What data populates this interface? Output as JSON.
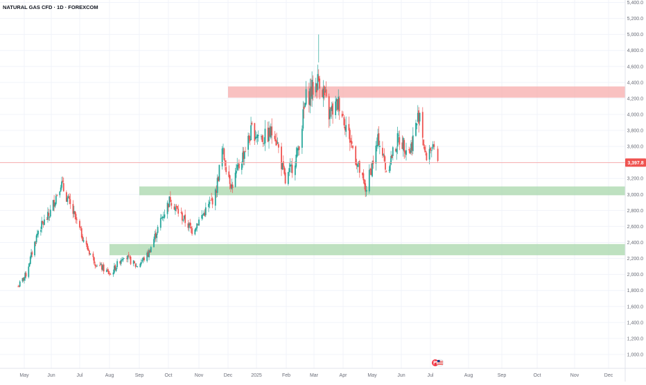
{
  "chart_title": "NATURAL GAS CFD · 1D · FOREXCOM",
  "colors": {
    "up": "#26a69a",
    "down": "#ef5350",
    "grid": "#f0f3fa",
    "resistance_zone": "#f7a9a9",
    "support_zone": "#a5d6a7",
    "last_price_line": "#f7a5a5",
    "last_price_badge": "#ef5350"
  },
  "icons": [
    "event-flag-icon",
    "us-flag-icon"
  ],
  "chart_data": {
    "type": "candlestick",
    "symbol": "NATURAL GAS CFD",
    "interval": "1D",
    "source": "FOREXCOM",
    "ylim": [
      900,
      5450
    ],
    "y_ticks": [
      "1,000.0",
      "1,200.0",
      "1,400.0",
      "1,600.0",
      "1,800.0",
      "2,000.0",
      "2,200.0",
      "2,400.0",
      "2,600.0",
      "2,800.0",
      "3,000.0",
      "3,200.0",
      "3,400.0",
      "3,600.0",
      "3,800.0",
      "4,000.0",
      "4,200.0",
      "4,400.0",
      "4,600.0",
      "4,800.0",
      "5,000.0",
      "5,200.0",
      "5,400.0"
    ],
    "x_ticks": [
      "May",
      "Jun",
      "Jul",
      "Aug",
      "Sep",
      "Oct",
      "Nov",
      "Dec",
      "2025",
      "Feb",
      "Mar",
      "Apr",
      "May",
      "Jun",
      "Jul",
      "Aug",
      "Sep",
      "Oct",
      "Nov",
      "Dec"
    ],
    "last_price": "3,397.8",
    "zones": [
      {
        "kind": "resistance",
        "from": 4210,
        "to": 4350,
        "start_month": "Dec"
      },
      {
        "kind": "support",
        "from": 2990,
        "to": 3100,
        "start_month": "Sep"
      },
      {
        "kind": "support",
        "from": 2240,
        "to": 2380,
        "start_month": "Aug"
      }
    ],
    "price_path": [
      [
        "2024-04-24",
        1850
      ],
      [
        "2024-05-03",
        2000
      ],
      [
        "2024-05-17",
        2550
      ],
      [
        "2024-05-30",
        2750
      ],
      [
        "2024-06-11",
        3150
      ],
      [
        "2024-06-28",
        2650
      ],
      [
        "2024-07-08",
        2350
      ],
      [
        "2024-07-17",
        2150
      ],
      [
        "2024-08-02",
        2000
      ],
      [
        "2024-08-16",
        2250
      ],
      [
        "2024-08-29",
        2100
      ],
      [
        "2024-09-10",
        2250
      ],
      [
        "2024-09-24",
        2700
      ],
      [
        "2024-10-03",
        2950
      ],
      [
        "2024-10-10",
        2800
      ],
      [
        "2024-10-25",
        2550
      ],
      [
        "2024-11-08",
        2800
      ],
      [
        "2024-11-18",
        3000
      ],
      [
        "2024-11-25",
        3550
      ],
      [
        "2024-12-05",
        3100
      ],
      [
        "2024-12-16",
        3450
      ],
      [
        "2024-12-27",
        3800
      ],
      [
        "2025-01-08",
        3700
      ],
      [
        "2025-01-20",
        3800
      ],
      [
        "2025-01-31",
        3150
      ],
      [
        "2025-02-12",
        3500
      ],
      [
        "2025-02-21",
        4200
      ],
      [
        "2025-03-07",
        4450
      ],
      [
        "2025-03-17",
        4000
      ],
      [
        "2025-03-28",
        4150
      ],
      [
        "2025-04-08",
        3700
      ],
      [
        "2025-04-24",
        3050
      ],
      [
        "2025-05-08",
        3700
      ],
      [
        "2025-05-16",
        3300
      ],
      [
        "2025-05-29",
        3700
      ],
      [
        "2025-06-10",
        3550
      ],
      [
        "2025-06-20",
        4050
      ],
      [
        "2025-06-26",
        3450
      ],
      [
        "2025-07-01",
        3600
      ],
      [
        "2025-07-07",
        3397.8
      ]
    ]
  }
}
